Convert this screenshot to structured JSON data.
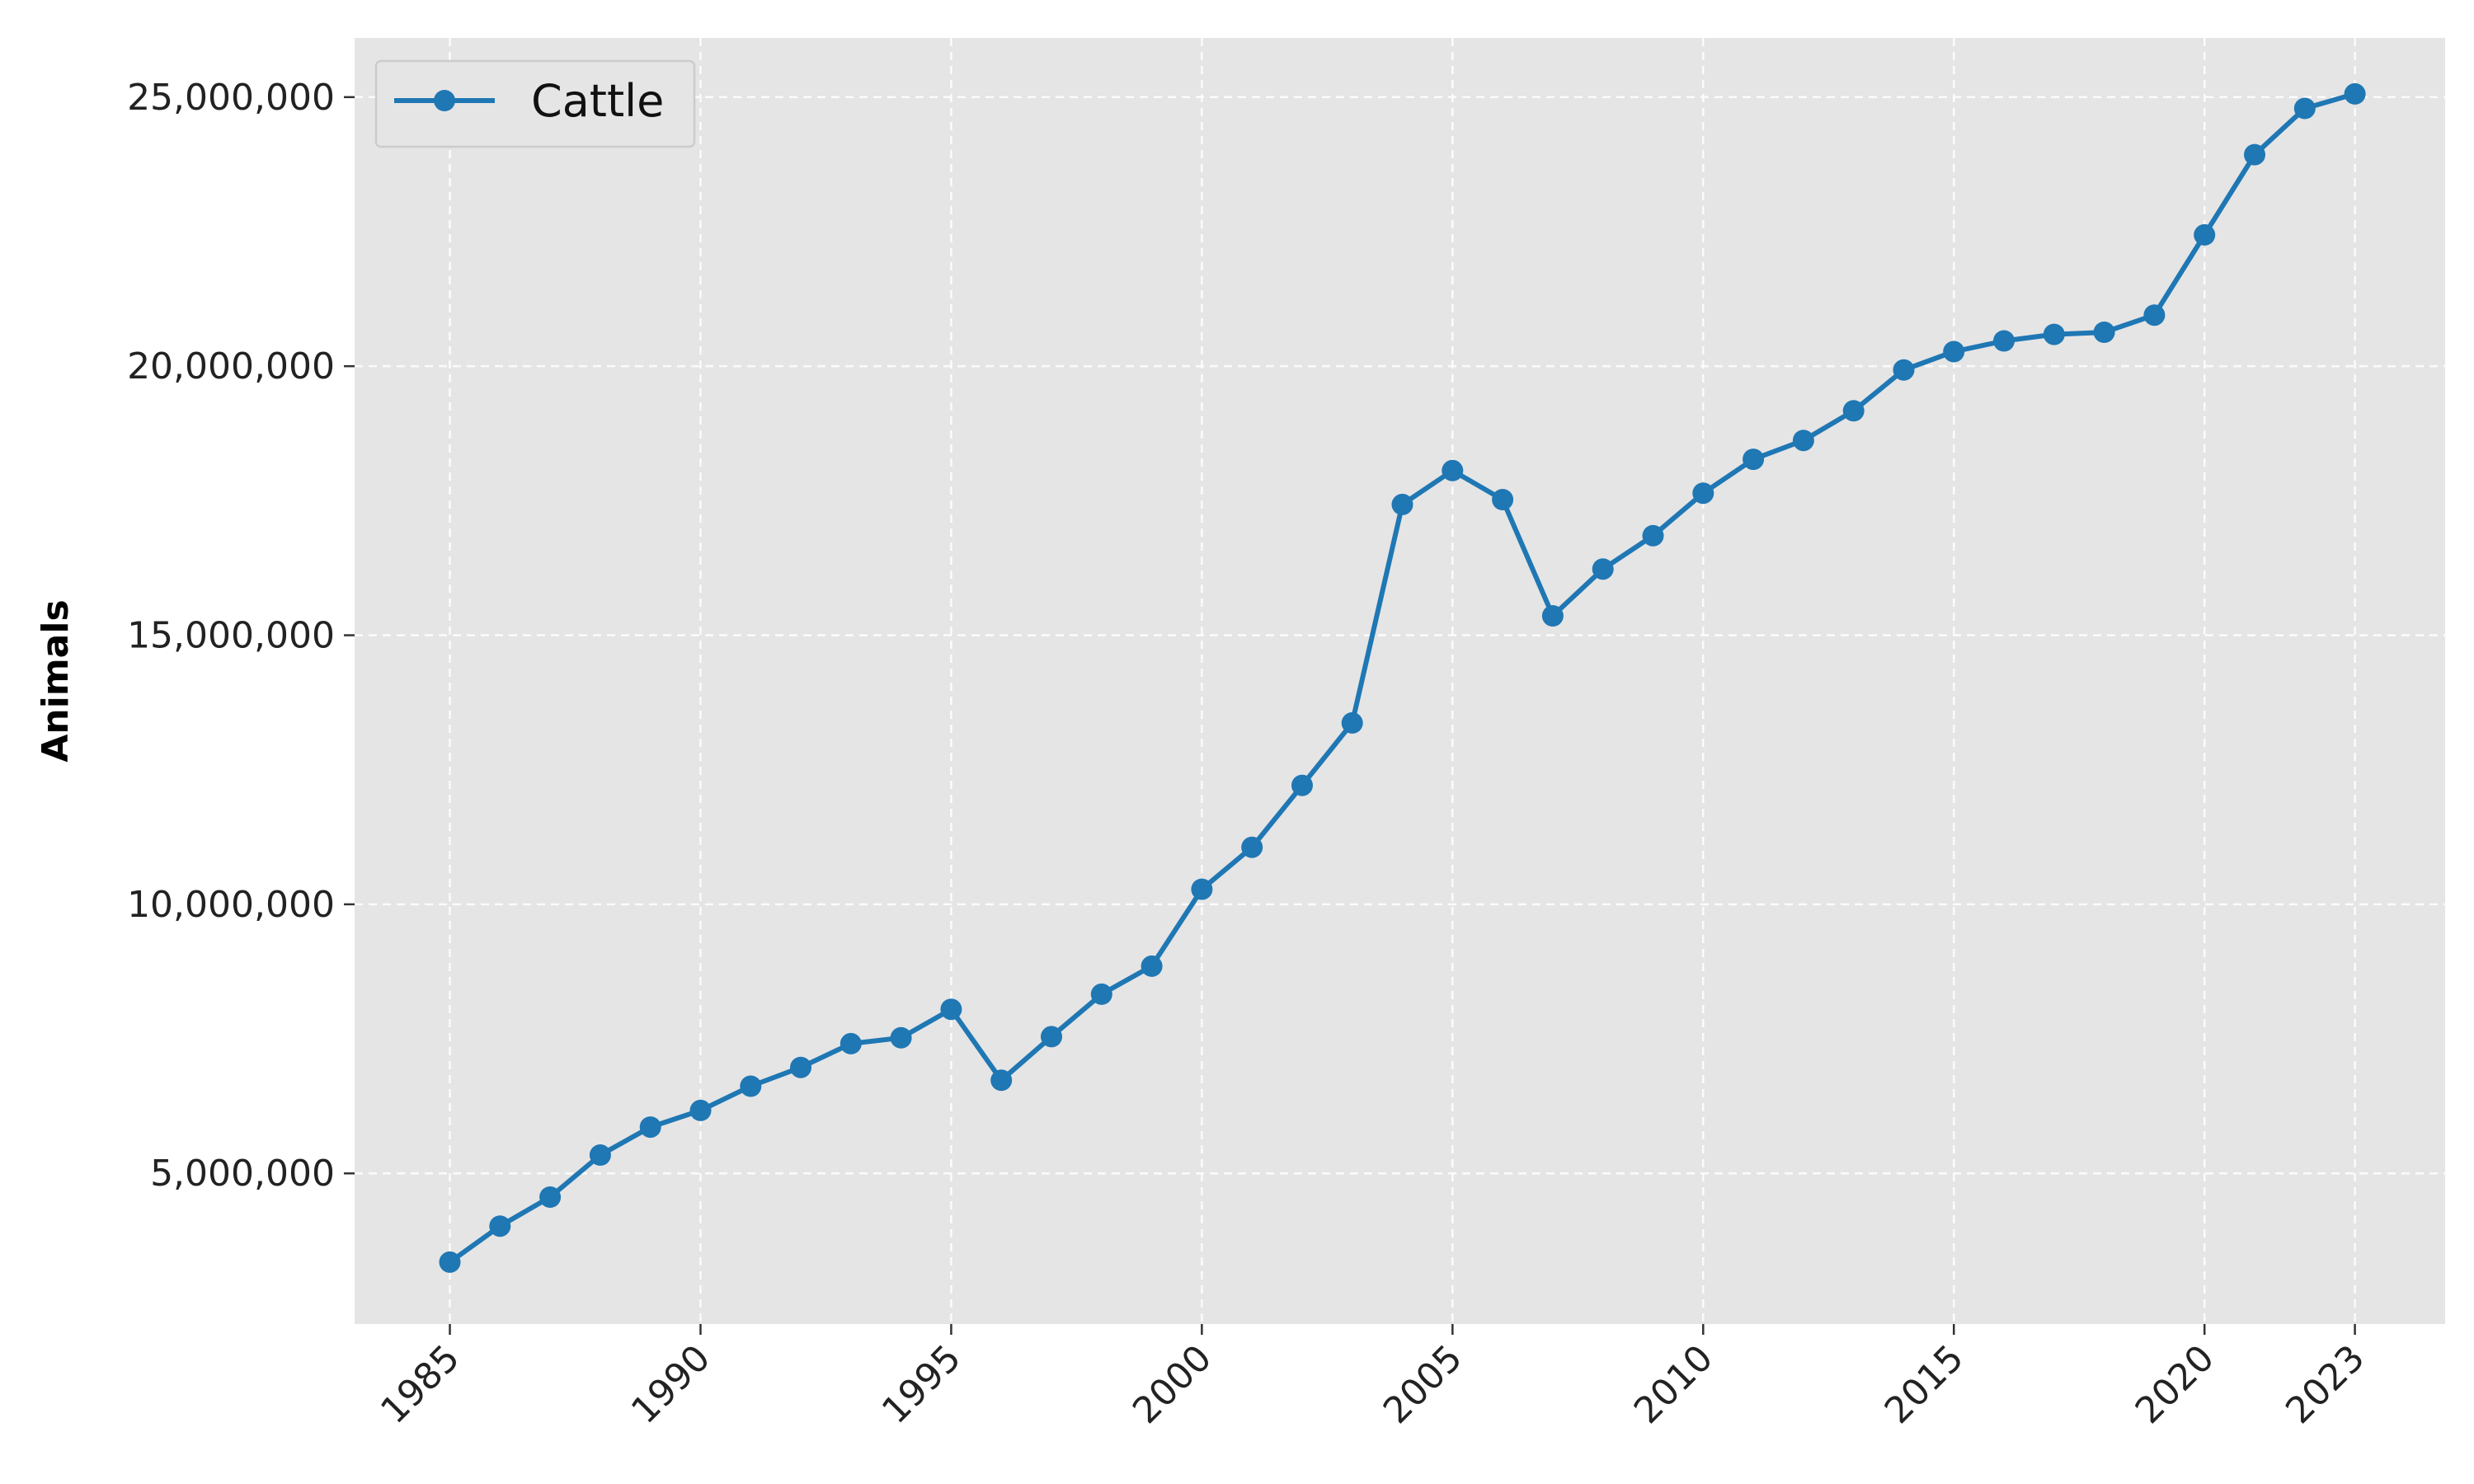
{
  "chart_data": {
    "type": "line",
    "title": "",
    "xlabel": "",
    "ylabel": "Animals",
    "x": [
      1985,
      1986,
      1987,
      1988,
      1989,
      1990,
      1991,
      1992,
      1993,
      1994,
      1995,
      1996,
      1997,
      1998,
      1999,
      2000,
      2001,
      2002,
      2003,
      2004,
      2005,
      2006,
      2007,
      2008,
      2009,
      2010,
      2011,
      2012,
      2013,
      2014,
      2015,
      2016,
      2017,
      2018,
      2019,
      2020,
      2021,
      2022,
      2023
    ],
    "series": [
      {
        "name": "Cattle",
        "color": "#1f77b4",
        "values": [
          3350000,
          4020000,
          4560000,
          5340000,
          5860000,
          6170000,
          6620000,
          6970000,
          7410000,
          7520000,
          8050000,
          6730000,
          7540000,
          8330000,
          8850000,
          10280000,
          11060000,
          12210000,
          13370000,
          17430000,
          18060000,
          17520000,
          15360000,
          16230000,
          16850000,
          17640000,
          18270000,
          18620000,
          19170000,
          19930000,
          20270000,
          20470000,
          20590000,
          20630000,
          20950000,
          22440000,
          23930000,
          24790000,
          25060000
        ]
      }
    ],
    "xticks": [
      1985,
      1990,
      1995,
      2000,
      2005,
      2010,
      2015,
      2020,
      2023
    ],
    "xtick_labels": [
      "1985",
      "1990",
      "1995",
      "2000",
      "2005",
      "2010",
      "2015",
      "2020",
      "2023"
    ],
    "yticks": [
      5000000,
      10000000,
      15000000,
      20000000,
      25000000
    ],
    "ytick_labels": [
      "5,000,000",
      "10,000,000",
      "15,000,000",
      "20,000,000",
      "25,000,000"
    ],
    "xlim": [
      1983.1,
      2024.8
    ],
    "ylim": [
      2200000,
      26100000
    ],
    "grid": true,
    "legend_position": "top-left",
    "plot_background": "#e5e5e5"
  }
}
